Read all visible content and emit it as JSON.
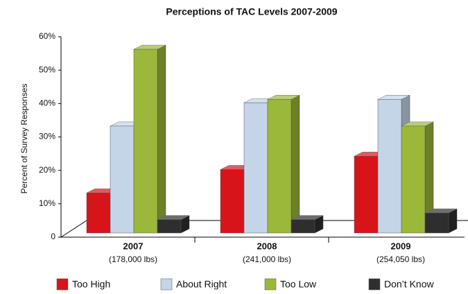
{
  "chart_data": {
    "type": "bar3d",
    "title": "Perceptions of TAC Levels 2007-2009",
    "y_label": "Percent of Survey Responses",
    "categories": [
      "2007",
      "2008",
      "2009"
    ],
    "category_notes": [
      "(178,000 lbs)",
      "(241,000 lbs)",
      "(254,050 lbs)"
    ],
    "series": [
      {
        "name": "Too High",
        "color": "#d7141a",
        "values": [
          12,
          19,
          23
        ]
      },
      {
        "name": "About Right",
        "color": "#c5d5e8",
        "values": [
          32,
          39,
          40
        ]
      },
      {
        "name": "Too Low",
        "color": "#9bb83a",
        "values": [
          55,
          40,
          32
        ]
      },
      {
        "name": "Don’t Know",
        "color": "#2e2e2e",
        "values": [
          4,
          4,
          6
        ]
      }
    ],
    "ylim": [
      0,
      60
    ],
    "yticks": [
      0,
      {
        "value": 10,
        "label": "10%"
      },
      {
        "value": 20,
        "label": "20%"
      },
      {
        "value": 30,
        "label": "30%"
      },
      {
        "value": 40,
        "label": "40%"
      },
      {
        "value": 50,
        "label": "50%"
      },
      {
        "value": 60,
        "label": "60%"
      }
    ]
  }
}
